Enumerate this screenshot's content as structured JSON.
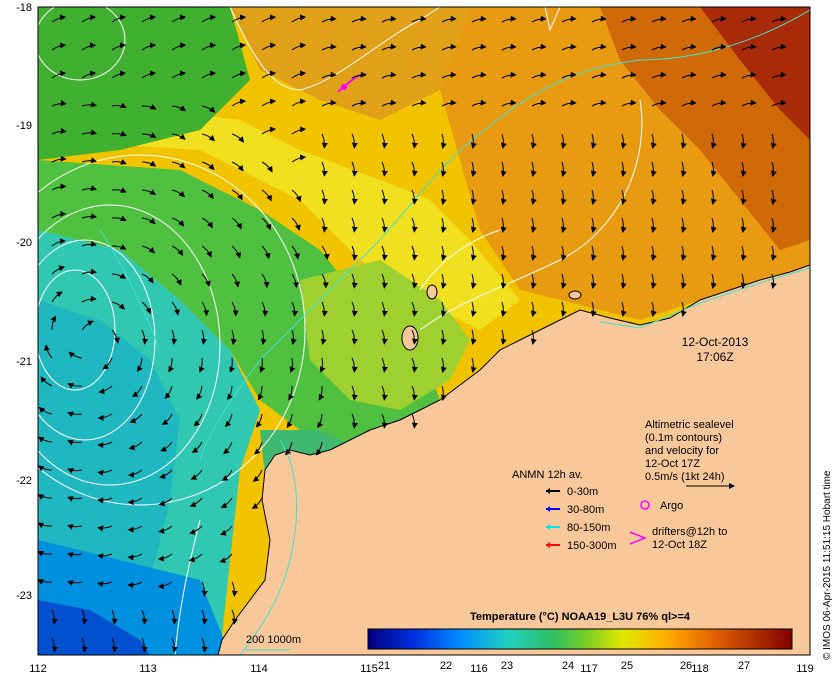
{
  "map": {
    "lon_ticks": [
      "112",
      "113",
      "114",
      "115",
      "116",
      "117",
      "118",
      "119"
    ],
    "lat_ticks": [
      "-18",
      "-19",
      "-20",
      "-21",
      "-22",
      "-23"
    ],
    "date_line1": "12-Oct-2013",
    "date_line2": "17:06Z",
    "credit": "© IMOS 06-Apr-2015 11:51:15 Hobart time",
    "colors": {
      "land": "#f9c89a",
      "contour": "#ffffff",
      "isobath": "#40e0d0",
      "argo": "#ff00ff"
    }
  },
  "altimetry": {
    "lines": [
      "Altimetric sealevel",
      "(0.1m contours)",
      "and velocity for",
      "12-Oct 17Z",
      "0.5m/s (1kt 24h)"
    ]
  },
  "legend": {
    "title": "ANMN 12h av.",
    "items": [
      {
        "label": "0-30m",
        "color": "#000000"
      },
      {
        "label": "30-80m",
        "color": "#0000ff"
      },
      {
        "label": "80-150m",
        "color": "#00e5e5"
      },
      {
        "label": "150-300m",
        "color": "#ff0000"
      }
    ],
    "argo": "Argo",
    "drifters_line1": "drifters@12h to",
    "drifters_line2": "12-Oct 18Z"
  },
  "isobath": {
    "label": "200  1000m"
  },
  "colorbar": {
    "title": "Temperature (°C) NOAA19_L3U 76% ql>=4",
    "ticks": [
      "21",
      "22",
      "23",
      "24",
      "25",
      "26",
      "27"
    ],
    "colors": [
      "#00007f",
      "#0040ff",
      "#00c0ff",
      "#20d0a0",
      "#30c030",
      "#c0e000",
      "#ffe000",
      "#ff9000",
      "#d04000",
      "#800000"
    ]
  }
}
